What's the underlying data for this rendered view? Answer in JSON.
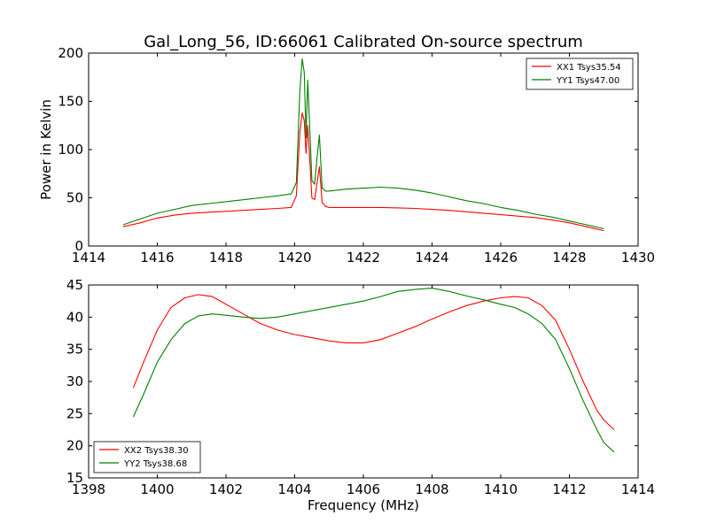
{
  "figure": {
    "title": "Gal_Long_56, ID:66061 Calibrated On-source spectrum"
  },
  "chart_data": [
    {
      "type": "line",
      "title": "Gal_Long_56, ID:66061 Calibrated On-source spectrum",
      "xlabel": "",
      "ylabel": "Power in Kelvin",
      "xlim": [
        1414,
        1430
      ],
      "ylim": [
        0,
        200
      ],
      "xticks": [
        1414,
        1416,
        1418,
        1420,
        1422,
        1424,
        1426,
        1428,
        1430
      ],
      "yticks": [
        0,
        50,
        100,
        150,
        200
      ],
      "legend_position": "top-right",
      "series": [
        {
          "name": "XX1 Tsys35.54",
          "color": "#ff0000",
          "x": [
            1415.0,
            1415.5,
            1416.0,
            1416.5,
            1417.0,
            1417.5,
            1418.0,
            1418.5,
            1419.0,
            1419.5,
            1419.9,
            1420.05,
            1420.15,
            1420.22,
            1420.28,
            1420.33,
            1420.38,
            1420.43,
            1420.5,
            1420.58,
            1420.66,
            1420.72,
            1420.8,
            1420.9,
            1421.0,
            1421.5,
            1422.0,
            1422.5,
            1423.0,
            1423.5,
            1424.0,
            1424.5,
            1425.0,
            1425.5,
            1426.0,
            1426.5,
            1427.0,
            1427.5,
            1428.0,
            1428.5,
            1429.0
          ],
          "y": [
            20,
            24,
            29,
            32,
            34,
            35,
            36,
            37,
            38,
            39,
            40,
            52,
            118,
            138,
            130,
            96,
            125,
            95,
            50,
            48,
            68,
            82,
            45,
            41,
            40,
            40,
            40,
            40,
            39.5,
            39,
            38,
            37,
            35.5,
            34,
            32.5,
            31,
            29.5,
            27,
            24,
            20,
            16
          ]
        },
        {
          "name": "YY1 Tsys47.00",
          "color": "#007f00",
          "x": [
            1415.0,
            1415.5,
            1416.0,
            1416.5,
            1417.0,
            1417.5,
            1418.0,
            1418.5,
            1419.0,
            1419.5,
            1419.9,
            1420.05,
            1420.15,
            1420.22,
            1420.28,
            1420.33,
            1420.38,
            1420.43,
            1420.5,
            1420.58,
            1420.66,
            1420.72,
            1420.8,
            1420.9,
            1421.0,
            1421.5,
            1422.0,
            1422.5,
            1423.0,
            1423.5,
            1424.0,
            1424.5,
            1425.0,
            1425.5,
            1426.0,
            1426.5,
            1427.0,
            1427.5,
            1428.0,
            1428.5,
            1429.0
          ],
          "y": [
            22,
            28,
            34,
            38,
            42,
            44,
            46,
            48,
            50,
            52,
            54,
            66,
            160,
            194,
            180,
            112,
            172,
            130,
            68,
            64,
            95,
            115,
            60,
            57,
            57,
            59,
            60,
            61,
            60,
            58,
            55,
            51,
            47,
            44,
            40,
            37,
            33,
            30,
            26,
            22,
            18
          ]
        }
      ]
    },
    {
      "type": "line",
      "title": "",
      "xlabel": "Frequency (MHz)",
      "ylabel": "",
      "xlim": [
        1398,
        1414
      ],
      "ylim": [
        15,
        45
      ],
      "xticks": [
        1398,
        1400,
        1402,
        1404,
        1406,
        1408,
        1410,
        1412,
        1414
      ],
      "yticks": [
        15,
        20,
        25,
        30,
        35,
        40,
        45
      ],
      "legend_position": "bottom-left",
      "series": [
        {
          "name": "XX2 Tsys38.30",
          "color": "#ff0000",
          "x": [
            1399.3,
            1399.6,
            1400.0,
            1400.4,
            1400.8,
            1401.2,
            1401.6,
            1402.0,
            1402.5,
            1403.0,
            1403.5,
            1404.0,
            1404.5,
            1405.0,
            1405.5,
            1406.0,
            1406.5,
            1407.0,
            1407.5,
            1408.0,
            1408.5,
            1409.0,
            1409.5,
            1410.0,
            1410.4,
            1410.8,
            1411.2,
            1411.6,
            1412.0,
            1412.4,
            1412.8,
            1413.0,
            1413.3
          ],
          "y": [
            29,
            33,
            38,
            41.5,
            43,
            43.5,
            43.2,
            42,
            40.5,
            39,
            38,
            37.3,
            36.8,
            36.3,
            36,
            36,
            36.5,
            37.5,
            38.5,
            39.7,
            40.8,
            41.8,
            42.5,
            43,
            43.2,
            43,
            41.8,
            39.5,
            35,
            30,
            25.5,
            24,
            22.5
          ]
        },
        {
          "name": "YY2 Tsys38.68",
          "color": "#007f00",
          "x": [
            1399.3,
            1399.6,
            1400.0,
            1400.4,
            1400.8,
            1401.2,
            1401.6,
            1402.0,
            1402.5,
            1403.0,
            1403.5,
            1404.0,
            1404.5,
            1405.0,
            1405.5,
            1406.0,
            1406.5,
            1407.0,
            1407.5,
            1408.0,
            1408.5,
            1409.0,
            1409.5,
            1410.0,
            1410.4,
            1410.8,
            1411.2,
            1411.6,
            1412.0,
            1412.4,
            1412.8,
            1413.0,
            1413.3
          ],
          "y": [
            24.5,
            28,
            33,
            36.5,
            39,
            40.2,
            40.5,
            40.3,
            40,
            39.8,
            40,
            40.5,
            41,
            41.5,
            42,
            42.5,
            43.2,
            44,
            44.3,
            44.5,
            44,
            43.3,
            42.7,
            42,
            41.5,
            40.5,
            39,
            36.5,
            32,
            27,
            22.5,
            20.5,
            19
          ]
        }
      ]
    }
  ]
}
